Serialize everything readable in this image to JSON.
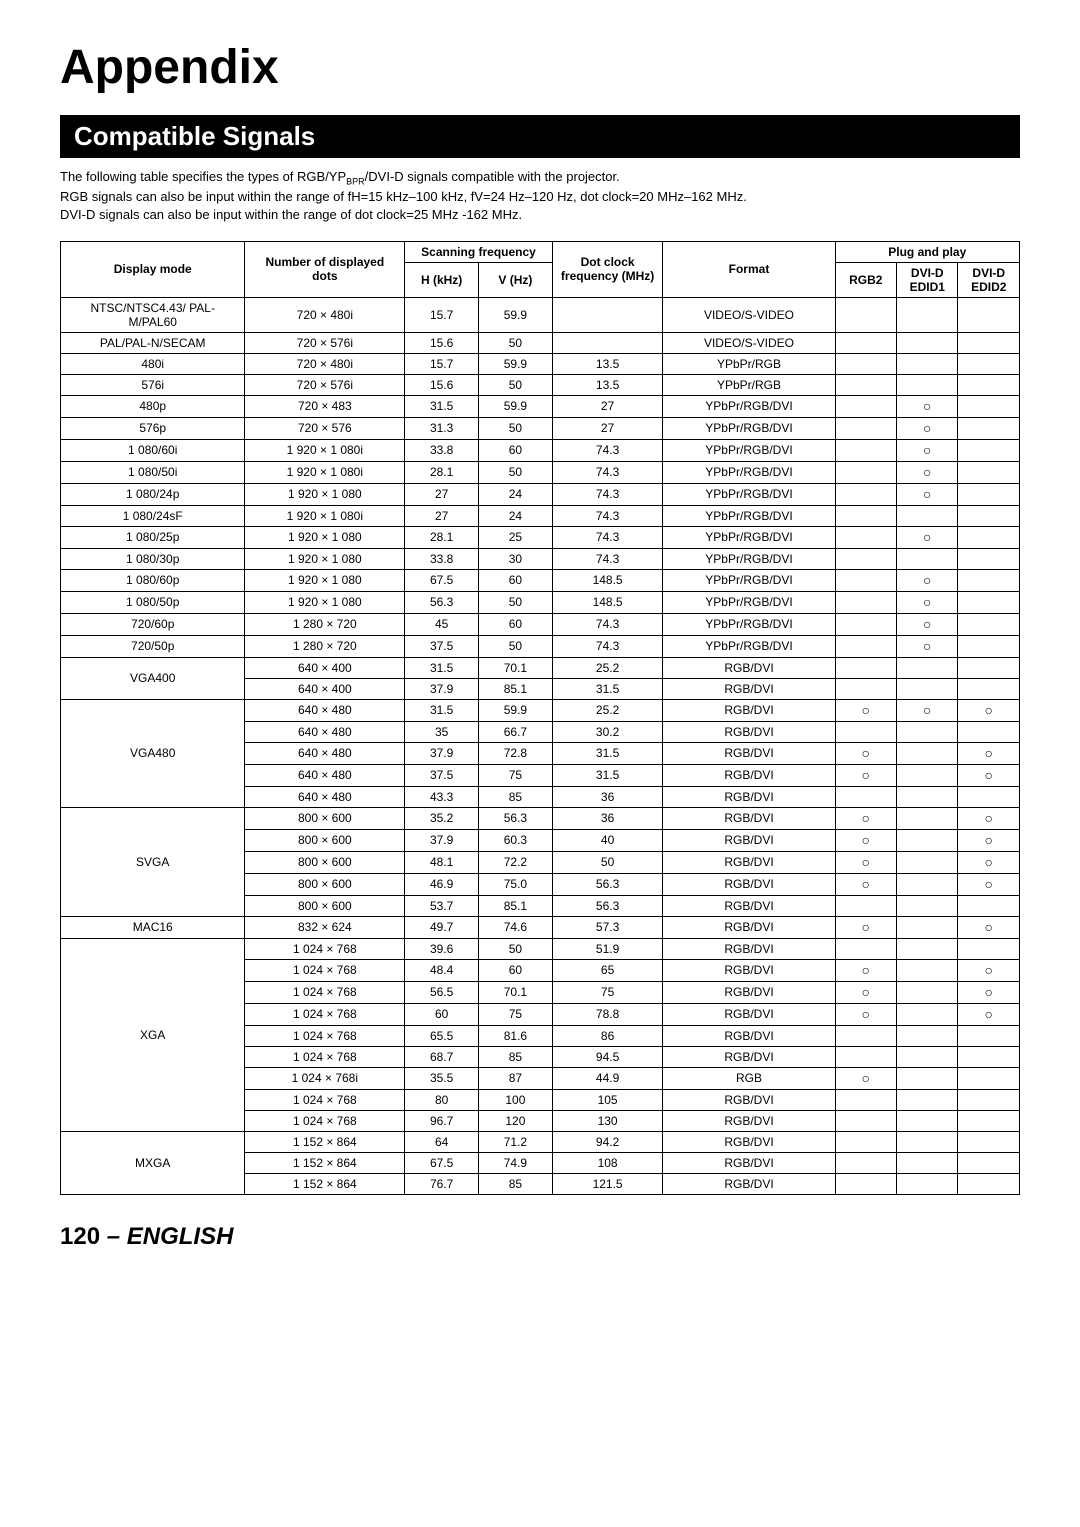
{
  "page": {
    "title": "Appendix",
    "section": "Compatible Signals",
    "intro1": "The following table specifies the types of RGB/YP",
    "intro1_sub": "BPR",
    "intro1_rest": "/DVI-D signals compatible with the projector.",
    "intro2": "RGB signals can also be input within the range of fH=15 kHz–100 kHz, fV=24 Hz–120 Hz, dot clock=20 MHz–162 MHz.",
    "intro3": "DVI-D signals can also be input within the range of dot clock=25 MHz -162 MHz.",
    "footer_page": "120",
    "footer_lang": " – ENGLISH"
  },
  "headers": {
    "display_mode": "Display mode",
    "num_dots": "Number of displayed dots",
    "scanning": "Scanning frequency",
    "h": "H (kHz)",
    "v": "V (Hz)",
    "dotclock": "Dot clock frequency (MHz)",
    "format": "Format",
    "plug": "Plug and play",
    "rgb2": "RGB2",
    "dvid1": "DVI-D EDID1",
    "dvid2": "DVI-D EDID2"
  },
  "circle": "○",
  "rows": [
    {
      "mode": "NTSC/NTSC4.43/ PAL-M/PAL60",
      "span": 1,
      "dots": "720 × 480i",
      "h": "15.7",
      "v": "59.9",
      "dc": "",
      "fmt": "VIDEO/S-VIDEO",
      "r": "",
      "d1": "",
      "d2": ""
    },
    {
      "mode": "PAL/PAL-N/SECAM",
      "span": 1,
      "dots": "720 × 576i",
      "h": "15.6",
      "v": "50",
      "dc": "",
      "fmt": "VIDEO/S-VIDEO",
      "r": "",
      "d1": "",
      "d2": ""
    },
    {
      "mode": "480i",
      "span": 1,
      "dots": "720 × 480i",
      "h": "15.7",
      "v": "59.9",
      "dc": "13.5",
      "fmt": "YPbPr/RGB",
      "r": "",
      "d1": "",
      "d2": ""
    },
    {
      "mode": "576i",
      "span": 1,
      "dots": "720 × 576i",
      "h": "15.6",
      "v": "50",
      "dc": "13.5",
      "fmt": "YPbPr/RGB",
      "r": "",
      "d1": "",
      "d2": ""
    },
    {
      "mode": "480p",
      "span": 1,
      "dots": "720 × 483",
      "h": "31.5",
      "v": "59.9",
      "dc": "27",
      "fmt": "YPbPr/RGB/DVI",
      "r": "",
      "d1": "○",
      "d2": ""
    },
    {
      "mode": "576p",
      "span": 1,
      "dots": "720 × 576",
      "h": "31.3",
      "v": "50",
      "dc": "27",
      "fmt": "YPbPr/RGB/DVI",
      "r": "",
      "d1": "○",
      "d2": ""
    },
    {
      "mode": "1 080/60i",
      "span": 1,
      "dots": "1 920 × 1 080i",
      "h": "33.8",
      "v": "60",
      "dc": "74.3",
      "fmt": "YPbPr/RGB/DVI",
      "r": "",
      "d1": "○",
      "d2": ""
    },
    {
      "mode": "1 080/50i",
      "span": 1,
      "dots": "1 920 × 1 080i",
      "h": "28.1",
      "v": "50",
      "dc": "74.3",
      "fmt": "YPbPr/RGB/DVI",
      "r": "",
      "d1": "○",
      "d2": ""
    },
    {
      "mode": "1 080/24p",
      "span": 1,
      "dots": "1 920 × 1 080",
      "h": "27",
      "v": "24",
      "dc": "74.3",
      "fmt": "YPbPr/RGB/DVI",
      "r": "",
      "d1": "○",
      "d2": ""
    },
    {
      "mode": "1 080/24sF",
      "span": 1,
      "dots": "1 920 × 1 080i",
      "h": "27",
      "v": "24",
      "dc": "74.3",
      "fmt": "YPbPr/RGB/DVI",
      "r": "",
      "d1": "",
      "d2": ""
    },
    {
      "mode": "1 080/25p",
      "span": 1,
      "dots": "1 920 × 1 080",
      "h": "28.1",
      "v": "25",
      "dc": "74.3",
      "fmt": "YPbPr/RGB/DVI",
      "r": "",
      "d1": "○",
      "d2": ""
    },
    {
      "mode": "1 080/30p",
      "span": 1,
      "dots": "1 920 × 1 080",
      "h": "33.8",
      "v": "30",
      "dc": "74.3",
      "fmt": "YPbPr/RGB/DVI",
      "r": "",
      "d1": "",
      "d2": ""
    },
    {
      "mode": "1 080/60p",
      "span": 1,
      "dots": "1 920 × 1 080",
      "h": "67.5",
      "v": "60",
      "dc": "148.5",
      "fmt": "YPbPr/RGB/DVI",
      "r": "",
      "d1": "○",
      "d2": ""
    },
    {
      "mode": "1 080/50p",
      "span": 1,
      "dots": "1 920 × 1 080",
      "h": "56.3",
      "v": "50",
      "dc": "148.5",
      "fmt": "YPbPr/RGB/DVI",
      "r": "",
      "d1": "○",
      "d2": ""
    },
    {
      "mode": "720/60p",
      "span": 1,
      "dots": "1 280 × 720",
      "h": "45",
      "v": "60",
      "dc": "74.3",
      "fmt": "YPbPr/RGB/DVI",
      "r": "",
      "d1": "○",
      "d2": ""
    },
    {
      "mode": "720/50p",
      "span": 1,
      "dots": "1 280 × 720",
      "h": "37.5",
      "v": "50",
      "dc": "74.3",
      "fmt": "YPbPr/RGB/DVI",
      "r": "",
      "d1": "○",
      "d2": ""
    },
    {
      "mode": "VGA400",
      "span": 2,
      "dots": "640 × 400",
      "h": "31.5",
      "v": "70.1",
      "dc": "25.2",
      "fmt": "RGB/DVI",
      "r": "",
      "d1": "",
      "d2": ""
    },
    {
      "dots": "640 × 400",
      "h": "37.9",
      "v": "85.1",
      "dc": "31.5",
      "fmt": "RGB/DVI",
      "r": "",
      "d1": "",
      "d2": ""
    },
    {
      "mode": "VGA480",
      "span": 5,
      "dots": "640 × 480",
      "h": "31.5",
      "v": "59.9",
      "dc": "25.2",
      "fmt": "RGB/DVI",
      "r": "○",
      "d1": "○",
      "d2": "○"
    },
    {
      "dots": "640 × 480",
      "h": "35",
      "v": "66.7",
      "dc": "30.2",
      "fmt": "RGB/DVI",
      "r": "",
      "d1": "",
      "d2": ""
    },
    {
      "dots": "640 × 480",
      "h": "37.9",
      "v": "72.8",
      "dc": "31.5",
      "fmt": "RGB/DVI",
      "r": "○",
      "d1": "",
      "d2": "○"
    },
    {
      "dots": "640 × 480",
      "h": "37.5",
      "v": "75",
      "dc": "31.5",
      "fmt": "RGB/DVI",
      "r": "○",
      "d1": "",
      "d2": "○"
    },
    {
      "dots": "640 × 480",
      "h": "43.3",
      "v": "85",
      "dc": "36",
      "fmt": "RGB/DVI",
      "r": "",
      "d1": "",
      "d2": ""
    },
    {
      "mode": "SVGA",
      "span": 5,
      "dots": "800 × 600",
      "h": "35.2",
      "v": "56.3",
      "dc": "36",
      "fmt": "RGB/DVI",
      "r": "○",
      "d1": "",
      "d2": "○"
    },
    {
      "dots": "800 × 600",
      "h": "37.9",
      "v": "60.3",
      "dc": "40",
      "fmt": "RGB/DVI",
      "r": "○",
      "d1": "",
      "d2": "○"
    },
    {
      "dots": "800 × 600",
      "h": "48.1",
      "v": "72.2",
      "dc": "50",
      "fmt": "RGB/DVI",
      "r": "○",
      "d1": "",
      "d2": "○"
    },
    {
      "dots": "800 × 600",
      "h": "46.9",
      "v": "75.0",
      "dc": "56.3",
      "fmt": "RGB/DVI",
      "r": "○",
      "d1": "",
      "d2": "○"
    },
    {
      "dots": "800 × 600",
      "h": "53.7",
      "v": "85.1",
      "dc": "56.3",
      "fmt": "RGB/DVI",
      "r": "",
      "d1": "",
      "d2": ""
    },
    {
      "mode": "MAC16",
      "span": 1,
      "dots": "832 × 624",
      "h": "49.7",
      "v": "74.6",
      "dc": "57.3",
      "fmt": "RGB/DVI",
      "r": "○",
      "d1": "",
      "d2": "○"
    },
    {
      "mode": "XGA",
      "span": 9,
      "dots": "1 024 × 768",
      "h": "39.6",
      "v": "50",
      "dc": "51.9",
      "fmt": "RGB/DVI",
      "r": "",
      "d1": "",
      "d2": ""
    },
    {
      "dots": "1 024 × 768",
      "h": "48.4",
      "v": "60",
      "dc": "65",
      "fmt": "RGB/DVI",
      "r": "○",
      "d1": "",
      "d2": "○"
    },
    {
      "dots": "1 024 × 768",
      "h": "56.5",
      "v": "70.1",
      "dc": "75",
      "fmt": "RGB/DVI",
      "r": "○",
      "d1": "",
      "d2": "○"
    },
    {
      "dots": "1 024 × 768",
      "h": "60",
      "v": "75",
      "dc": "78.8",
      "fmt": "RGB/DVI",
      "r": "○",
      "d1": "",
      "d2": "○"
    },
    {
      "dots": "1 024 × 768",
      "h": "65.5",
      "v": "81.6",
      "dc": "86",
      "fmt": "RGB/DVI",
      "r": "",
      "d1": "",
      "d2": ""
    },
    {
      "dots": "1 024 × 768",
      "h": "68.7",
      "v": "85",
      "dc": "94.5",
      "fmt": "RGB/DVI",
      "r": "",
      "d1": "",
      "d2": ""
    },
    {
      "dots": "1 024 × 768i",
      "h": "35.5",
      "v": "87",
      "dc": "44.9",
      "fmt": "RGB",
      "r": "○",
      "d1": "",
      "d2": ""
    },
    {
      "dots": "1 024 × 768",
      "h": "80",
      "v": "100",
      "dc": "105",
      "fmt": "RGB/DVI",
      "r": "",
      "d1": "",
      "d2": ""
    },
    {
      "dots": "1 024 × 768",
      "h": "96.7",
      "v": "120",
      "dc": "130",
      "fmt": "RGB/DVI",
      "r": "",
      "d1": "",
      "d2": ""
    },
    {
      "mode": "MXGA",
      "span": 3,
      "dots": "1 152 × 864",
      "h": "64",
      "v": "71.2",
      "dc": "94.2",
      "fmt": "RGB/DVI",
      "r": "",
      "d1": "",
      "d2": ""
    },
    {
      "dots": "1 152 × 864",
      "h": "67.5",
      "v": "74.9",
      "dc": "108",
      "fmt": "RGB/DVI",
      "r": "",
      "d1": "",
      "d2": ""
    },
    {
      "dots": "1 152 × 864",
      "h": "76.7",
      "v": "85",
      "dc": "121.5",
      "fmt": "RGB/DVI",
      "r": "",
      "d1": "",
      "d2": ""
    }
  ]
}
